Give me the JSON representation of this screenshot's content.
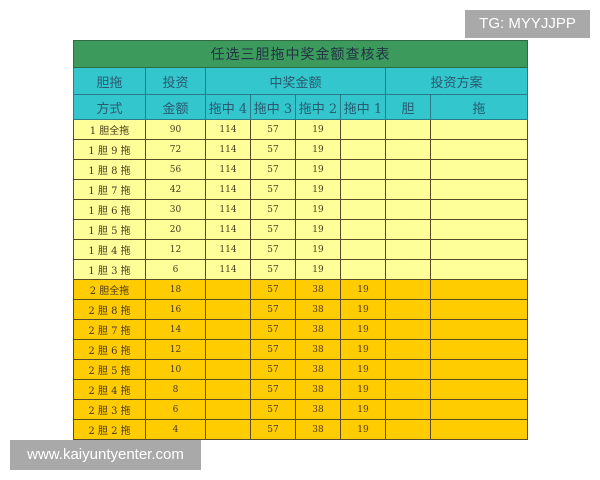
{
  "title": "任选三胆拖中奖金额查核表",
  "headers": {
    "mode_line1": "胆拖",
    "mode_line2": "方式",
    "invest_line1": "投资",
    "invest_line2": "金额",
    "prize": "中奖金额",
    "plan": "投资方案",
    "sub": [
      "拖中 4",
      "拖中 3",
      "拖中 2",
      "拖中 1"
    ],
    "plan_sub": [
      "胆",
      "拖"
    ]
  },
  "colors": {
    "title_bg": "#3c9a5c",
    "header_bg": "#33c6cc",
    "group1_bg": "#ffff99",
    "group2_bg": "#ffcc00"
  },
  "rows": [
    {
      "mode": "1 胆全拖",
      "invest": "90",
      "t4": "114",
      "t3": "57",
      "t2": "19",
      "t1": "",
      "group": 1
    },
    {
      "mode": "1 胆 9 拖",
      "invest": "72",
      "t4": "114",
      "t3": "57",
      "t2": "19",
      "t1": "",
      "group": 1
    },
    {
      "mode": "1 胆 8 拖",
      "invest": "56",
      "t4": "114",
      "t3": "57",
      "t2": "19",
      "t1": "",
      "group": 1
    },
    {
      "mode": "1 胆 7 拖",
      "invest": "42",
      "t4": "114",
      "t3": "57",
      "t2": "19",
      "t1": "",
      "group": 1
    },
    {
      "mode": "1 胆 6 拖",
      "invest": "30",
      "t4": "114",
      "t3": "57",
      "t2": "19",
      "t1": "",
      "group": 1
    },
    {
      "mode": "1 胆 5 拖",
      "invest": "20",
      "t4": "114",
      "t3": "57",
      "t2": "19",
      "t1": "",
      "group": 1
    },
    {
      "mode": "1 胆 4 拖",
      "invest": "12",
      "t4": "114",
      "t3": "57",
      "t2": "19",
      "t1": "",
      "group": 1
    },
    {
      "mode": "1 胆 3 拖",
      "invest": "6",
      "t4": "114",
      "t3": "57",
      "t2": "19",
      "t1": "",
      "group": 1
    },
    {
      "mode": "2 胆全拖",
      "invest": "18",
      "t4": "",
      "t3": "57",
      "t2": "38",
      "t1": "19",
      "group": 2
    },
    {
      "mode": "2 胆 8 拖",
      "invest": "16",
      "t4": "",
      "t3": "57",
      "t2": "38",
      "t1": "19",
      "group": 2
    },
    {
      "mode": "2 胆 7 拖",
      "invest": "14",
      "t4": "",
      "t3": "57",
      "t2": "38",
      "t1": "19",
      "group": 2
    },
    {
      "mode": "2 胆 6 拖",
      "invest": "12",
      "t4": "",
      "t3": "57",
      "t2": "38",
      "t1": "19",
      "group": 2
    },
    {
      "mode": "2 胆 5 拖",
      "invest": "10",
      "t4": "",
      "t3": "57",
      "t2": "38",
      "t1": "19",
      "group": 2
    },
    {
      "mode": "2 胆 4 拖",
      "invest": "8",
      "t4": "",
      "t3": "57",
      "t2": "38",
      "t1": "19",
      "group": 2
    },
    {
      "mode": "2 胆 3 拖",
      "invest": "6",
      "t4": "",
      "t3": "57",
      "t2": "38",
      "t1": "19",
      "group": 2
    },
    {
      "mode": "2 胆 2 拖",
      "invest": "4",
      "t4": "",
      "t3": "57",
      "t2": "38",
      "t1": "19",
      "group": 2
    }
  ],
  "watermarks": {
    "tg": "TG: MYYJJPP",
    "url": "www.kaiyuntyenter.com"
  }
}
